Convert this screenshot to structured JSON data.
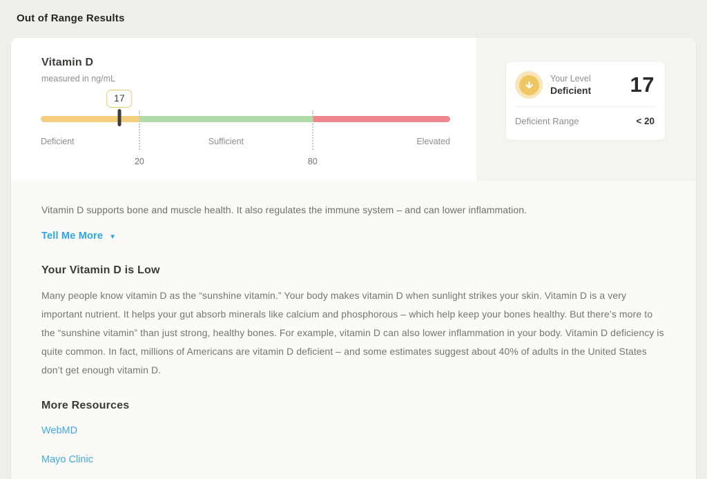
{
  "page": {
    "title": "Out of Range Results"
  },
  "colors": {
    "deficient_yellow": "#f5ce7d",
    "sufficient_green": "#afdca9",
    "elevated_red": "#f0878f",
    "marker_dark": "#3e3e3c",
    "accent_blue": "#2ba7e8",
    "icon_gold": "#efc762"
  },
  "biomarker": {
    "name": "Vitamin D",
    "unit_label": "measured in ng/mL",
    "value": "17",
    "gauge": {
      "type": "range-gauge",
      "segments": [
        {
          "label": "Deficient",
          "color": "#f5ce7d",
          "width_pct": 24.1
        },
        {
          "label": "Sufficient",
          "color": "#afdca9",
          "width_pct": 42.3
        },
        {
          "label": "Elevated",
          "color": "#f0878f",
          "width_pct": 33.6
        }
      ],
      "thresholds": [
        "20",
        "80"
      ],
      "marker_pct": 19.2
    },
    "level_panel": {
      "icon": "arrow-down-circle",
      "level_label": "Your Level",
      "level_value": "Deficient",
      "reading": "17",
      "range_label": "Deficient Range",
      "range_value": "< 20"
    }
  },
  "details": {
    "summary": "Vitamin D supports bone and muscle health. It also regulates the immune system – and can lower inflammation.",
    "tell_me_more_label": "Tell Me More",
    "section_heading": "Your Vitamin D is Low",
    "body": "Many people know vitamin D as the “sunshine vitamin.” Your body makes vitamin D when sunlight strikes your skin. Vitamin D is a very important nutrient. It helps your gut absorb minerals like calcium and phosphorous – which help keep your bones healthy. But there’s more to the “sunshine vitamin” than just strong, healthy bones. For example, vitamin D can also lower inflammation in your body. Vitamin D deficiency is quite common. In fact, millions of Americans are vitamin D deficient – and some estimates suggest about 40% of adults in the United States don’t get enough vitamin D.",
    "resources_heading": "More Resources",
    "links": [
      {
        "label": "WebMD"
      },
      {
        "label": "Mayo Clinic"
      }
    ]
  }
}
